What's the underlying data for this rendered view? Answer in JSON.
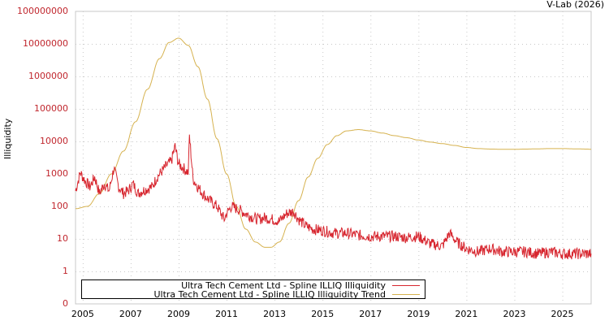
{
  "credit": "V-Lab (2026)",
  "colors": {
    "series_red": "#d7262f",
    "series_trend": "#d6b24f",
    "tick_label": "#c0262d",
    "grid": "#c8c8c8",
    "axis": "#c8c8c8"
  },
  "axes": {
    "ylabel": "Illiquidity",
    "yticks": [
      "100000000",
      "10000000",
      "1000000",
      "100000",
      "10000",
      "1000",
      "100",
      "10",
      "1",
      "0"
    ],
    "xticks": [
      "2005",
      "2007",
      "2009",
      "2011",
      "2013",
      "2015",
      "2017",
      "2019",
      "2021",
      "2023",
      "2025"
    ]
  },
  "legend": {
    "items": [
      {
        "label": "Ultra Tech Cement Ltd - Spline ILLIQ Illiquidity",
        "color": "#d7262f"
      },
      {
        "label": "Ultra Tech Cement Ltd - Spline ILLIQ Illiquidity Trend",
        "color": "#d6b24f"
      }
    ]
  },
  "chart_data": {
    "type": "line",
    "title": "",
    "xlabel": "",
    "ylabel": "Illiquidity",
    "yscale": "log",
    "ylim": [
      0,
      100000000
    ],
    "xlim": [
      2004.7,
      2026.2
    ],
    "grid": true,
    "legend_position": "bottom-left inside",
    "series": [
      {
        "name": "Ultra Tech Cement Ltd - Spline ILLIQ Illiquidity",
        "color": "#d7262f",
        "x": [
          2004.7,
          2004.9,
          2005.1,
          2005.3,
          2005.5,
          2005.7,
          2005.9,
          2006.1,
          2006.3,
          2006.5,
          2006.7,
          2006.9,
          2007.1,
          2007.3,
          2007.5,
          2007.7,
          2007.9,
          2008.1,
          2008.3,
          2008.5,
          2008.7,
          2008.85,
          2009.0,
          2009.2,
          2009.4,
          2009.45,
          2009.6,
          2009.8,
          2010.0,
          2010.3,
          2010.6,
          2010.9,
          2011.0,
          2011.2,
          2011.5,
          2011.8,
          2012.0,
          2012.3,
          2012.6,
          2012.9,
          2013.2,
          2013.5,
          2013.8,
          2014.0,
          2014.3,
          2014.6,
          2015.0,
          2015.5,
          2016.0,
          2016.5,
          2017.0,
          2017.5,
          2018.0,
          2018.5,
          2019.0,
          2019.5,
          2020.0,
          2020.3,
          2020.6,
          2021.0,
          2021.5,
          2022.0,
          2022.5,
          2023.0,
          2023.5,
          2024.0,
          2024.5,
          2025.0,
          2025.5,
          2026.0,
          2026.2
        ],
        "values": [
          300,
          1100,
          600,
          400,
          800,
          250,
          500,
          300,
          1500,
          400,
          250,
          300,
          500,
          250,
          300,
          350,
          400,
          800,
          1200,
          1800,
          2500,
          7000,
          2000,
          1500,
          1100,
          15000,
          700,
          400,
          250,
          150,
          100,
          40,
          60,
          100,
          80,
          60,
          50,
          40,
          45,
          40,
          35,
          60,
          70,
          40,
          25,
          20,
          18,
          15,
          15,
          13,
          12,
          12,
          12,
          11,
          12,
          7,
          6,
          15,
          8,
          5,
          4,
          5,
          4,
          4,
          4,
          3.5,
          4,
          3.5,
          3.5,
          3.5,
          3.5
        ]
      },
      {
        "name": "Ultra Tech Cement Ltd - Spline ILLIQ Illiquidity Trend",
        "color": "#d6b24f",
        "x": [
          2004.7,
          2005.2,
          2005.7,
          2006.2,
          2006.7,
          2007.2,
          2007.7,
          2008.2,
          2008.6,
          2009.0,
          2009.4,
          2009.8,
          2010.2,
          2010.6,
          2011.0,
          2011.4,
          2011.8,
          2012.2,
          2012.6,
          2012.85,
          2013.2,
          2013.6,
          2014.0,
          2014.4,
          2014.8,
          2015.2,
          2015.6,
          2016.0,
          2016.5,
          2017.0,
          2017.5,
          2018.0,
          2018.5,
          2019.0,
          2019.5,
          2020.0,
          2020.5,
          2021.0,
          2021.5,
          2022.0,
          2022.5,
          2023.0,
          2023.5,
          2024.0,
          2024.5,
          2025.0,
          2025.5,
          2026.0,
          2026.2
        ],
        "values": [
          85,
          100,
          250,
          1000,
          5000,
          40000,
          400000,
          3500000,
          11000000,
          15000000,
          9000000,
          2000000,
          200000,
          12000,
          1000,
          100,
          20,
          8,
          5.5,
          5.5,
          8,
          30,
          150,
          800,
          3000,
          8000,
          15000,
          21000,
          23000,
          21000,
          18000,
          15000,
          13000,
          11000,
          9500,
          8500,
          7500,
          6500,
          6000,
          5800,
          5700,
          5700,
          5800,
          5900,
          6000,
          6000,
          5900,
          5800,
          5700
        ]
      }
    ]
  }
}
